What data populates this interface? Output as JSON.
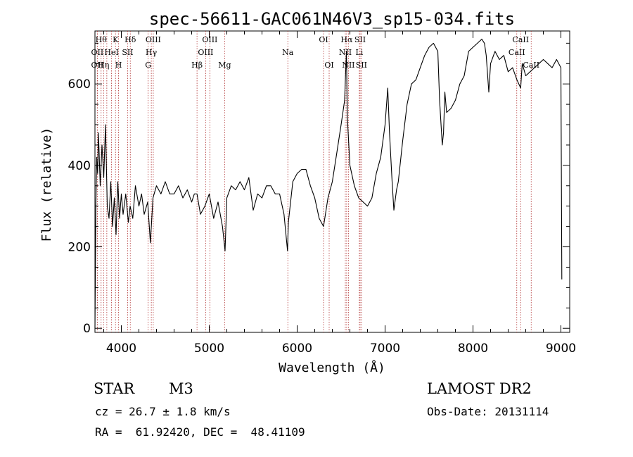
{
  "chart_data": {
    "type": "line",
    "title": "spec-56611-GAC061N46V3_sp15-034.fits",
    "xlabel": "Wavelength (Å)",
    "ylabel": "Flux (relative)",
    "xlim": [
      3700,
      9100
    ],
    "ylim": [
      -10,
      730
    ],
    "xticks": [
      4000,
      5000,
      6000,
      7000,
      8000,
      9000
    ],
    "yticks": [
      0,
      200,
      400,
      600
    ],
    "grid": false,
    "line_color": "#000000",
    "marker_color": "#b03030",
    "series": [
      {
        "x": [
          3700,
          3710,
          3720,
          3730,
          3740,
          3760,
          3780,
          3800,
          3820,
          3840,
          3860,
          3880,
          3900,
          3920,
          3940,
          3960,
          3980,
          4000,
          4020,
          4050,
          4080,
          4100,
          4130,
          4160,
          4200,
          4230,
          4260,
          4300,
          4330,
          4360,
          4400,
          4450,
          4500,
          4550,
          4600,
          4650,
          4700,
          4750,
          4800,
          4830,
          4861,
          4900,
          4950,
          5000,
          5050,
          5100,
          5150,
          5180,
          5200,
          5250,
          5300,
          5350,
          5400,
          5450,
          5500,
          5550,
          5600,
          5650,
          5700,
          5750,
          5800,
          5850,
          5890,
          5900,
          5950,
          6000,
          6050,
          6100,
          6150,
          6200,
          6250,
          6300,
          6350,
          6400,
          6450,
          6500,
          6540,
          6560,
          6563,
          6570,
          6600,
          6650,
          6700,
          6750,
          6800,
          6850,
          6900,
          6950,
          7000,
          7030,
          7050,
          7080,
          7100,
          7130,
          7150,
          7200,
          7250,
          7300,
          7350,
          7400,
          7450,
          7500,
          7550,
          7600,
          7620,
          7650,
          7665,
          7680,
          7700,
          7750,
          7800,
          7850,
          7900,
          7950,
          8000,
          8050,
          8100,
          8130,
          8150,
          8180,
          8200,
          8250,
          8300,
          8350,
          8400,
          8450,
          8500,
          8542,
          8560,
          8600,
          8650,
          8700,
          8750,
          8800,
          8850,
          8900,
          8950,
          9000,
          9010
        ],
        "y": [
          0,
          300,
          420,
          380,
          480,
          350,
          450,
          370,
          500,
          300,
          270,
          360,
          250,
          320,
          230,
          360,
          270,
          330,
          280,
          330,
          260,
          300,
          270,
          350,
          300,
          330,
          280,
          310,
          210,
          320,
          350,
          330,
          360,
          330,
          330,
          350,
          320,
          340,
          310,
          330,
          330,
          280,
          300,
          330,
          270,
          310,
          250,
          190,
          320,
          350,
          340,
          360,
          340,
          370,
          290,
          330,
          320,
          350,
          350,
          330,
          330,
          280,
          190,
          260,
          360,
          380,
          390,
          390,
          350,
          320,
          270,
          250,
          320,
          360,
          430,
          500,
          560,
          680,
          640,
          520,
          400,
          350,
          320,
          310,
          300,
          320,
          380,
          420,
          500,
          590,
          480,
          360,
          290,
          340,
          360,
          460,
          550,
          600,
          610,
          640,
          670,
          690,
          700,
          680,
          560,
          450,
          480,
          580,
          530,
          540,
          560,
          600,
          620,
          680,
          690,
          700,
          710,
          700,
          670,
          580,
          650,
          680,
          660,
          670,
          630,
          640,
          610,
          590,
          650,
          620,
          630,
          640,
          650,
          660,
          650,
          640,
          660,
          640,
          120
        ]
      }
    ],
    "line_markers": [
      {
        "wave": 3727,
        "label": "OII",
        "row": 2
      },
      {
        "wave": 3727,
        "label": "OII",
        "row": 3
      },
      {
        "wave": 3770,
        "label": "Hθ",
        "row": 1
      },
      {
        "wave": 3798,
        "label": "Hη",
        "row": 3
      },
      {
        "wave": 3835,
        "label": "",
        "row": 0
      },
      {
        "wave": 3889,
        "label": "HeI",
        "row": 2
      },
      {
        "wave": 3934,
        "label": "K",
        "row": 1
      },
      {
        "wave": 3968,
        "label": "H",
        "row": 3
      },
      {
        "wave": 4072,
        "label": "SII",
        "row": 2
      },
      {
        "wave": 4102,
        "label": "Hδ",
        "row": 1
      },
      {
        "wave": 4305,
        "label": "G",
        "row": 3
      },
      {
        "wave": 4341,
        "label": "Hγ",
        "row": 2
      },
      {
        "wave": 4363,
        "label": "OIII",
        "row": 1
      },
      {
        "wave": 4861,
        "label": "Hβ",
        "row": 3
      },
      {
        "wave": 4959,
        "label": "OIII",
        "row": 2
      },
      {
        "wave": 5007,
        "label": "OIII",
        "row": 1
      },
      {
        "wave": 5175,
        "label": "Mg",
        "row": 3
      },
      {
        "wave": 5894,
        "label": "Na",
        "row": 2
      },
      {
        "wave": 6300,
        "label": "OI",
        "row": 1
      },
      {
        "wave": 6364,
        "label": "OI",
        "row": 3
      },
      {
        "wave": 6548,
        "label": "NII",
        "row": 2
      },
      {
        "wave": 6563,
        "label": "Hα",
        "row": 1
      },
      {
        "wave": 6583,
        "label": "NII",
        "row": 3
      },
      {
        "wave": 6707,
        "label": "Li",
        "row": 2
      },
      {
        "wave": 6716,
        "label": "SII",
        "row": 1
      },
      {
        "wave": 6731,
        "label": "SII",
        "row": 3
      },
      {
        "wave": 8498,
        "label": "CaII",
        "row": 2
      },
      {
        "wave": 8542,
        "label": "CaII",
        "row": 1
      },
      {
        "wave": 8662,
        "label": "CaII",
        "row": 3
      }
    ]
  },
  "info": {
    "object_class": "STAR",
    "subclass": "M3",
    "redshift_line": "cz = 26.7 ± 1.8 km/s",
    "coords_line": "RA =  61.92420, DEC =  48.41109",
    "survey": "LAMOST DR2",
    "obs_date": "Obs-Date: 20131114"
  }
}
